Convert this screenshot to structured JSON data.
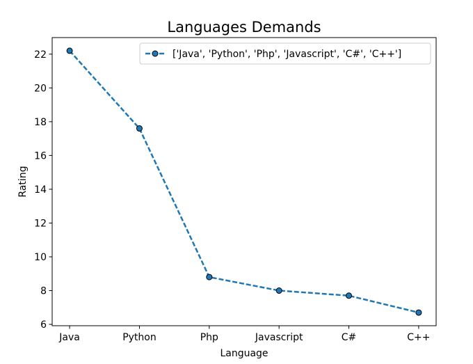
{
  "chart_data": {
    "type": "line",
    "title": "Languages Demands",
    "xlabel": "Language",
    "ylabel": "Rating",
    "categories": [
      "Java",
      "Python",
      "Php",
      "Javascript",
      "C#",
      "C++"
    ],
    "series": [
      {
        "name": "['Java', 'Python', 'Php', 'Javascript', 'C#', 'C++']",
        "values": [
          22.2,
          17.6,
          8.8,
          8.0,
          7.7,
          6.7
        ],
        "color": "#1f77b4",
        "line_style": "dashed",
        "marker": "circle",
        "marker_edge_color": "#000000"
      }
    ],
    "yticks": [
      6,
      8,
      10,
      12,
      14,
      16,
      18,
      20,
      22
    ],
    "ylim": [
      5.92,
      22.98
    ],
    "grid": false,
    "legend_position": "top-right"
  }
}
